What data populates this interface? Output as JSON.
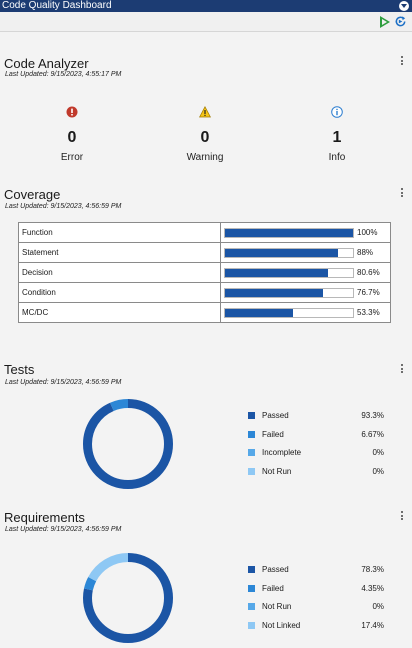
{
  "window": {
    "title": "Code Quality Dashboard"
  },
  "toolbar": {
    "run_icon": "play-icon",
    "refresh_icon": "refresh-icon"
  },
  "code_analyzer": {
    "title": "Code Analyzer",
    "updated": "Last Updated: 9/15/2023, 4:55:17 PM",
    "items": [
      {
        "label": "Error",
        "count": "0",
        "icon": "error-icon",
        "color": "#c0392b"
      },
      {
        "label": "Warning",
        "count": "0",
        "icon": "warning-icon",
        "color": "#e0a800"
      },
      {
        "label": "Info",
        "count": "1",
        "icon": "info-icon",
        "color": "#2f7fd0"
      }
    ]
  },
  "coverage": {
    "title": "Coverage",
    "updated": "Last Updated: 9/15/2023, 4:56:59 PM",
    "rows": [
      {
        "metric": "Function",
        "pct": "100%",
        "value": 100
      },
      {
        "metric": "Statement",
        "pct": "88%",
        "value": 88
      },
      {
        "metric": "Decision",
        "pct": "80.6%",
        "value": 80.6
      },
      {
        "metric": "Condition",
        "pct": "76.7%",
        "value": 76.7
      },
      {
        "metric": "MC/DC",
        "pct": "53.3%",
        "value": 53.3
      }
    ]
  },
  "tests": {
    "title": "Tests",
    "updated": "Last Updated: 9/15/2023, 4:56:59 PM",
    "legend": [
      {
        "label": "Passed",
        "pct": "93.3%",
        "value": 93.3,
        "color": "#1b55a5"
      },
      {
        "label": "Failed",
        "pct": "6.67%",
        "value": 6.67,
        "color": "#2c87d6"
      },
      {
        "label": "Incomplete",
        "pct": "0%",
        "value": 0,
        "color": "#56a8e8"
      },
      {
        "label": "Not Run",
        "pct": "0%",
        "value": 0,
        "color": "#8ec8f4"
      }
    ]
  },
  "requirements": {
    "title": "Requirements",
    "updated": "Last Updated: 9/15/2023, 4:56:59 PM",
    "legend": [
      {
        "label": "Passed",
        "pct": "78.3%",
        "value": 78.3,
        "color": "#1b55a5"
      },
      {
        "label": "Failed",
        "pct": "4.35%",
        "value": 4.35,
        "color": "#2c87d6"
      },
      {
        "label": "Not Run",
        "pct": "0%",
        "value": 0,
        "color": "#56a8e8"
      },
      {
        "label": "Not Linked",
        "pct": "17.4%",
        "value": 17.4,
        "color": "#8ec8f4"
      }
    ]
  }
}
